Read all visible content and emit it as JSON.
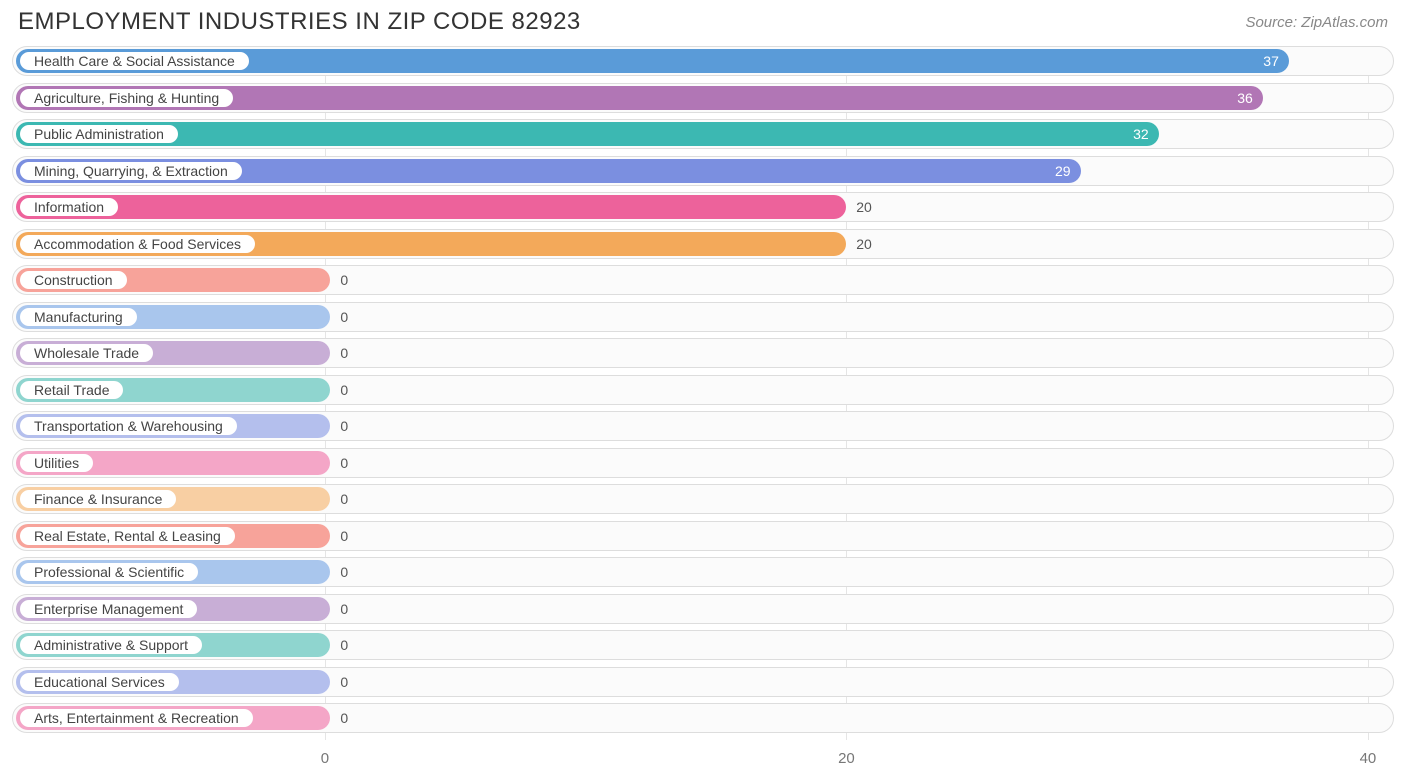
{
  "header": {
    "title": "EMPLOYMENT INDUSTRIES IN ZIP CODE 82923",
    "source": "Source: ZipAtlas.com"
  },
  "chart": {
    "type": "bar-horizontal",
    "background_color": "#ffffff",
    "row_border_color": "#dddddd",
    "row_background": "#fbfbfb",
    "grid_color": "#e5e5e5",
    "title_color": "#333333",
    "source_color": "#888888",
    "label_fontsize": 14,
    "axis_fontsize": 15,
    "value_inside_color": "#ffffff",
    "value_outside_color": "#555555",
    "zero_bar_pct": 23.0,
    "xmin": -12,
    "xmax": 41,
    "xticks": [
      0,
      20,
      40
    ],
    "bars": [
      {
        "label": "Health Care & Social Assistance",
        "value": 37,
        "color": "#5a9bd8",
        "value_inside": true
      },
      {
        "label": "Agriculture, Fishing & Hunting",
        "value": 36,
        "color": "#b176b5",
        "value_inside": true
      },
      {
        "label": "Public Administration",
        "value": 32,
        "color": "#3cb8b2",
        "value_inside": true
      },
      {
        "label": "Mining, Quarrying, & Extraction",
        "value": 29,
        "color": "#7b8fe0",
        "value_inside": true
      },
      {
        "label": "Information",
        "value": 20,
        "color": "#ed629b",
        "value_inside": false
      },
      {
        "label": "Accommodation & Food Services",
        "value": 20,
        "color": "#f3a95a",
        "value_inside": false
      },
      {
        "label": "Construction",
        "value": 0,
        "color": "#f7a39a",
        "value_inside": false
      },
      {
        "label": "Manufacturing",
        "value": 0,
        "color": "#a9c6ed",
        "value_inside": false
      },
      {
        "label": "Wholesale Trade",
        "value": 0,
        "color": "#c8aed6",
        "value_inside": false
      },
      {
        "label": "Retail Trade",
        "value": 0,
        "color": "#8fd5cf",
        "value_inside": false
      },
      {
        "label": "Transportation & Warehousing",
        "value": 0,
        "color": "#b4bfed",
        "value_inside": false
      },
      {
        "label": "Utilities",
        "value": 0,
        "color": "#f4a6c7",
        "value_inside": false
      },
      {
        "label": "Finance & Insurance",
        "value": 0,
        "color": "#f8cfa3",
        "value_inside": false
      },
      {
        "label": "Real Estate, Rental & Leasing",
        "value": 0,
        "color": "#f7a39a",
        "value_inside": false
      },
      {
        "label": "Professional & Scientific",
        "value": 0,
        "color": "#a9c6ed",
        "value_inside": false
      },
      {
        "label": "Enterprise Management",
        "value": 0,
        "color": "#c8aed6",
        "value_inside": false
      },
      {
        "label": "Administrative & Support",
        "value": 0,
        "color": "#8fd5cf",
        "value_inside": false
      },
      {
        "label": "Educational Services",
        "value": 0,
        "color": "#b4bfed",
        "value_inside": false
      },
      {
        "label": "Arts, Entertainment & Recreation",
        "value": 0,
        "color": "#f4a6c7",
        "value_inside": false
      }
    ]
  }
}
